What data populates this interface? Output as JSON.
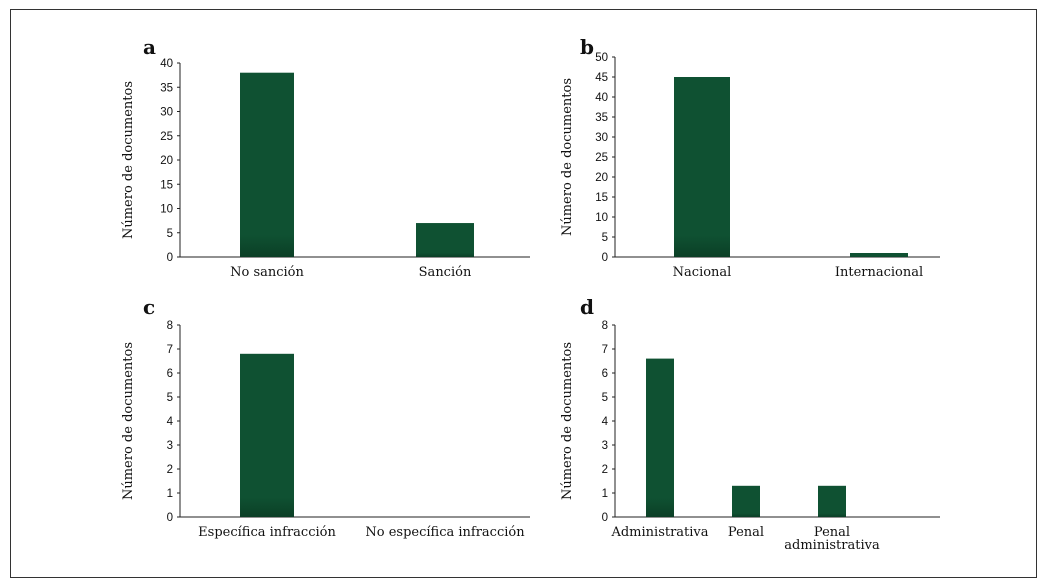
{
  "colors": {
    "bar": "#0f5132"
  },
  "chart_data": [
    {
      "type": "bar",
      "panel": "a",
      "title": "",
      "xlabel": "",
      "ylabel": "Número de documentos",
      "ylim": [
        0,
        40
      ],
      "yticks": [
        0,
        5,
        10,
        15,
        20,
        25,
        30,
        35,
        40
      ],
      "categories": [
        [
          "No sanción"
        ],
        [
          "Sanción"
        ]
      ],
      "values": [
        38,
        7
      ],
      "grid": false
    },
    {
      "type": "bar",
      "panel": "b",
      "title": "",
      "xlabel": "",
      "ylabel": "Número de documentos",
      "ylim": [
        0,
        50
      ],
      "yticks": [
        0,
        5,
        10,
        15,
        20,
        25,
        30,
        35,
        40,
        45,
        50
      ],
      "categories": [
        [
          "Nacional"
        ],
        [
          "Internacional"
        ]
      ],
      "values": [
        45,
        1
      ],
      "grid": false
    },
    {
      "type": "bar",
      "panel": "c",
      "title": "",
      "xlabel": "",
      "ylabel": "Número de documentos",
      "ylim": [
        0,
        8
      ],
      "yticks": [
        0,
        1,
        2,
        3,
        4,
        5,
        6,
        7,
        8
      ],
      "categories": [
        [
          "Específica infracción"
        ],
        [
          "No específica infracción"
        ]
      ],
      "values": [
        6.8,
        0
      ],
      "grid": false
    },
    {
      "type": "bar",
      "panel": "d",
      "title": "",
      "xlabel": "",
      "ylabel": "Número de documentos",
      "ylim": [
        0,
        8
      ],
      "yticks": [
        0,
        1,
        2,
        3,
        4,
        5,
        6,
        7,
        8
      ],
      "categories": [
        [
          "Administrativa"
        ],
        [
          "Penal"
        ],
        [
          "Penal",
          "administrativa"
        ],
        [
          ""
        ]
      ],
      "values": [
        6.6,
        1.3,
        1.3,
        0
      ],
      "grid": false
    }
  ]
}
